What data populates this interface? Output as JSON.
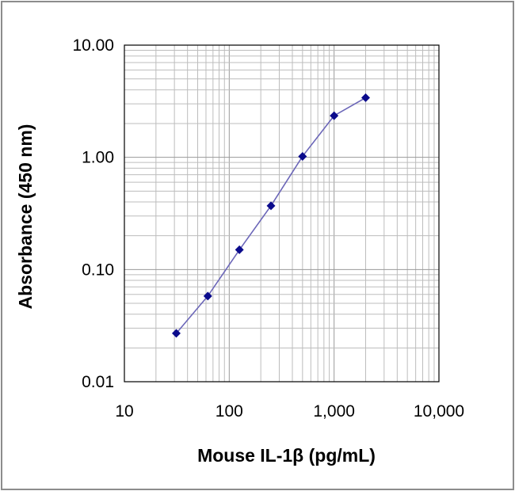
{
  "chart_data": {
    "type": "line",
    "xlabel": "Mouse IL-1β (pg/mL)",
    "ylabel": "Absorbance (450 nm)",
    "x_scale": "log",
    "y_scale": "log",
    "xlim": [
      10,
      10000
    ],
    "ylim": [
      0.01,
      10
    ],
    "x_tick_labels": [
      "10",
      "100",
      "1,000",
      "10,000"
    ],
    "y_tick_labels": [
      "0.01",
      "0.10",
      "1.00",
      "10.00"
    ],
    "grid": true,
    "legend": "none",
    "series": [
      {
        "x": [
          31.25,
          62.5,
          125,
          250,
          500,
          1000,
          2000
        ],
        "y": [
          0.027,
          0.058,
          0.15,
          0.37,
          1.02,
          2.35,
          3.4
        ],
        "color": "#6b66b8",
        "marker_color": "#0b0b8c",
        "marker": "diamond"
      }
    ]
  }
}
